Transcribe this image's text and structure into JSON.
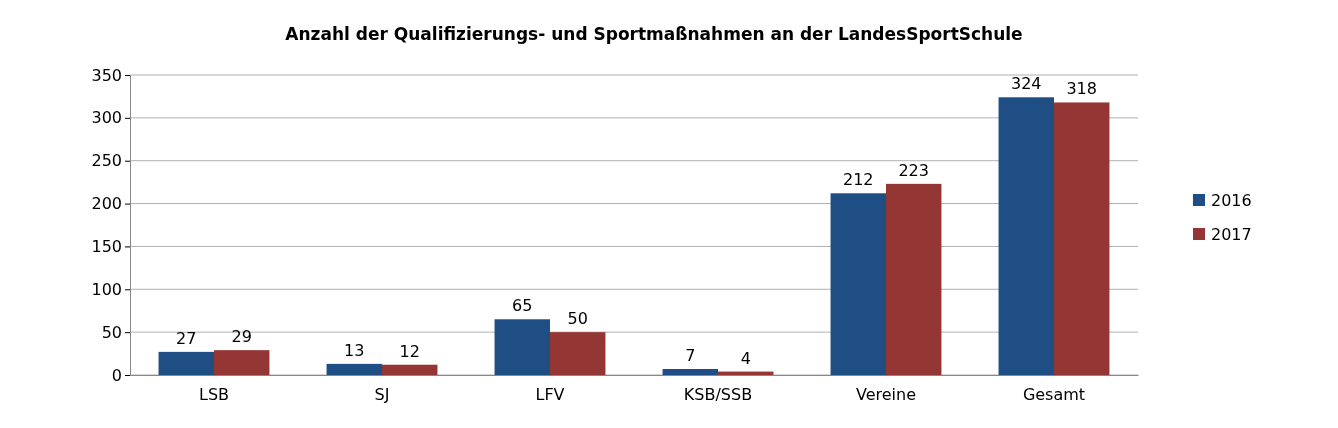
{
  "chart_data": {
    "type": "bar",
    "title": "Anzahl der Qualifizierungs- und Sportmaßnahmen an der LandesSportSchule",
    "categories": [
      "LSB",
      "SJ",
      "LFV",
      "KSB/SSB",
      "Vereine",
      "Gesamt"
    ],
    "series": [
      {
        "name": "2016",
        "color": "#1f4e84",
        "values": [
          27,
          13,
          65,
          7,
          212,
          324
        ]
      },
      {
        "name": "2017",
        "color": "#943634",
        "values": [
          29,
          12,
          50,
          4,
          223,
          318
        ]
      }
    ],
    "ylim": [
      0,
      350
    ],
    "yticks": [
      0,
      50,
      100,
      150,
      200,
      250,
      300,
      350
    ],
    "grid": "y",
    "legend": "right",
    "data_labels": true
  }
}
